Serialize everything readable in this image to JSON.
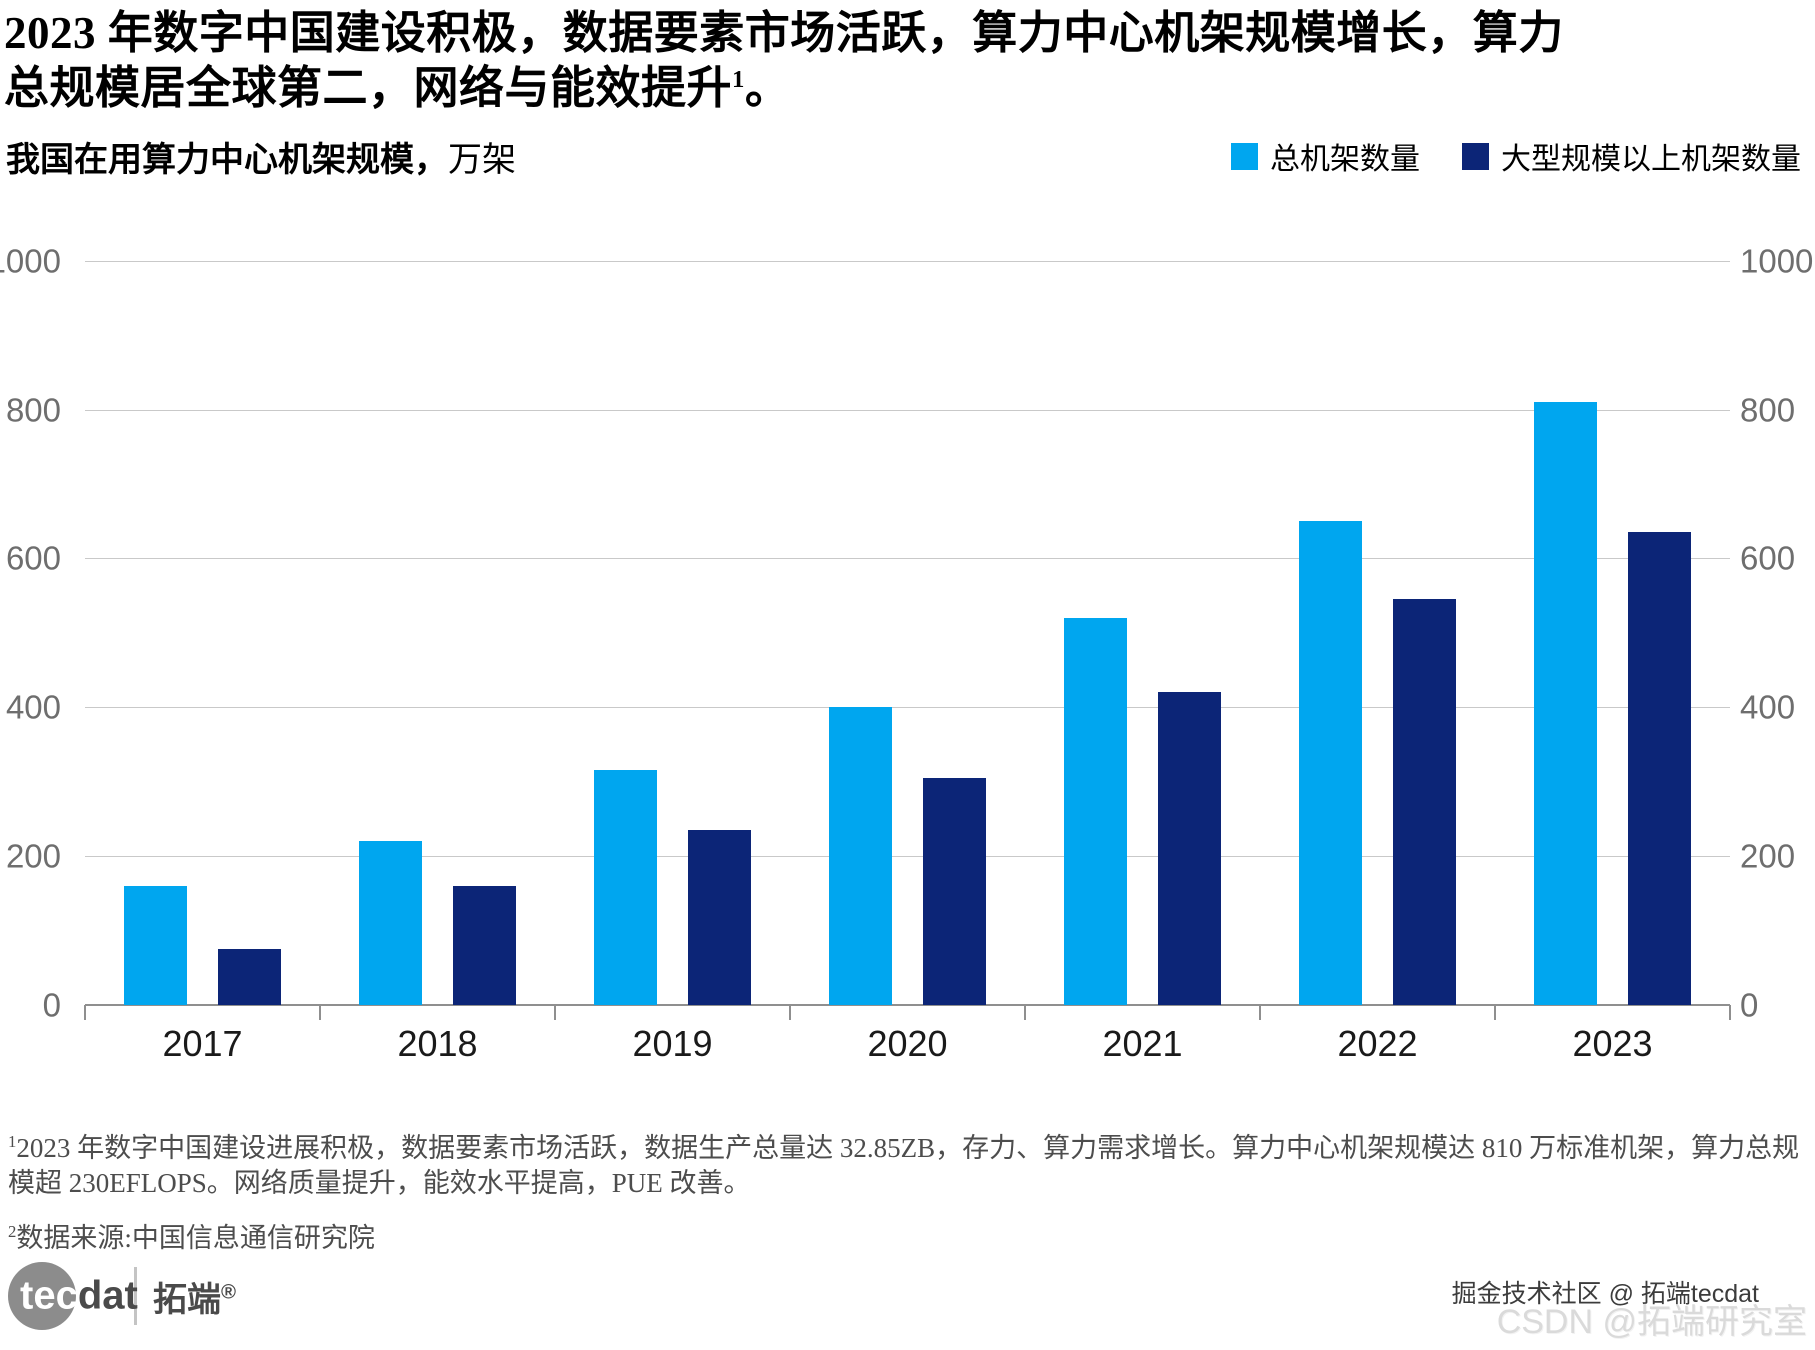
{
  "title": {
    "text": "2023 年数字中国建设积极，数据要素市场活跃，算力中心机架规模增长，算力总规模居全球第二，网络与能效提升",
    "sup": "1",
    "tail": "。"
  },
  "subtitle": {
    "bold": "我国在用算力中心机架规模，",
    "unit": "万架"
  },
  "legend": [
    {
      "label": "总机架数量",
      "color": "#00A6EF"
    },
    {
      "label": "大型规模以上机架数量",
      "color": "#0C2577"
    }
  ],
  "chart_data": {
    "type": "bar",
    "title": "我国在用算力中心机架规模，万架",
    "categories": [
      "2017",
      "2018",
      "2019",
      "2020",
      "2021",
      "2022",
      "2023"
    ],
    "series": [
      {
        "name": "总机架数量",
        "color": "#00A6EF",
        "values": [
          160,
          220,
          315,
          400,
          520,
          650,
          810
        ]
      },
      {
        "name": "大型规模以上机架数量",
        "color": "#0C2577",
        "values": [
          75,
          160,
          235,
          305,
          420,
          545,
          635
        ]
      }
    ],
    "xlabel": "",
    "ylabel": "万架",
    "ylim": [
      0,
      1000
    ],
    "yticks": [
      0,
      200,
      400,
      600,
      800,
      1000
    ],
    "grid": true,
    "y_axis_sides": "both",
    "legend_position": "top-right"
  },
  "footnotes": {
    "fn1_sup": "1",
    "fn1_text": "2023 年数字中国建设进展积极，数据要素市场活跃，数据生产总量达 32.85ZB，存力、算力需求增长。算力中心机架规模达 810 万标准机架，算力总规模超 230EFLOPS。网络质量提升，能效水平提高，PUE 改善。",
    "fn2_sup": "2",
    "fn2_text": "数据来源:中国信息通信研究院"
  },
  "footer": {
    "logo": {
      "circle_text": "tec",
      "after_text": "dat",
      "brand": "拓端",
      "registered": "®"
    },
    "credit": "掘金技术社区 @ 拓端tecdat",
    "watermark": "CSDN @拓端研究室"
  },
  "colors": {
    "bar_light": "#00A6EF",
    "bar_dark": "#0C2577",
    "gridline": "#C9C9C9",
    "axis_line": "#8F8F8F",
    "y_tick_label": "#6E6E6E"
  }
}
